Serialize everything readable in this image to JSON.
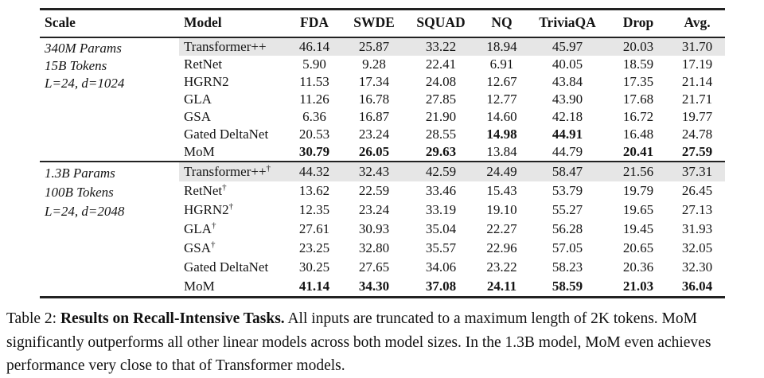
{
  "table": {
    "columns": [
      "Scale",
      "Model",
      "FDA",
      "SWDE",
      "SQUAD",
      "NQ",
      "TriviaQA",
      "Drop",
      "Avg."
    ],
    "dagger_symbol": "†",
    "groups": [
      {
        "scale_lines": [
          "340M Params",
          "15B Tokens",
          "L=24, d=1024"
        ],
        "rows": [
          {
            "model": "Transformer++",
            "dagger": false,
            "highlight": true,
            "values": [
              "46.14",
              "25.87",
              "33.22",
              "18.94",
              "45.97",
              "20.03",
              "31.70"
            ],
            "bold": [
              false,
              false,
              false,
              false,
              false,
              false,
              false
            ]
          },
          {
            "model": "RetNet",
            "dagger": false,
            "highlight": false,
            "values": [
              "5.90",
              "9.28",
              "22.41",
              "6.91",
              "40.05",
              "18.59",
              "17.19"
            ],
            "bold": [
              false,
              false,
              false,
              false,
              false,
              false,
              false
            ]
          },
          {
            "model": "HGRN2",
            "dagger": false,
            "highlight": false,
            "values": [
              "11.53",
              "17.34",
              "24.08",
              "12.67",
              "43.84",
              "17.35",
              "21.14"
            ],
            "bold": [
              false,
              false,
              false,
              false,
              false,
              false,
              false
            ]
          },
          {
            "model": "GLA",
            "dagger": false,
            "highlight": false,
            "values": [
              "11.26",
              "16.78",
              "27.85",
              "12.77",
              "43.90",
              "17.68",
              "21.71"
            ],
            "bold": [
              false,
              false,
              false,
              false,
              false,
              false,
              false
            ]
          },
          {
            "model": "GSA",
            "dagger": false,
            "highlight": false,
            "values": [
              "6.36",
              "16.87",
              "21.90",
              "14.60",
              "42.18",
              "16.72",
              "19.77"
            ],
            "bold": [
              false,
              false,
              false,
              false,
              false,
              false,
              false
            ]
          },
          {
            "model": "Gated DeltaNet",
            "dagger": false,
            "highlight": false,
            "values": [
              "20.53",
              "23.24",
              "28.55",
              "14.98",
              "44.91",
              "16.48",
              "24.78"
            ],
            "bold": [
              false,
              false,
              false,
              true,
              true,
              false,
              false
            ]
          },
          {
            "model": "MoM",
            "dagger": false,
            "highlight": false,
            "values": [
              "30.79",
              "26.05",
              "29.63",
              "13.84",
              "44.79",
              "20.41",
              "27.59"
            ],
            "bold": [
              true,
              true,
              true,
              false,
              false,
              true,
              true
            ]
          }
        ]
      },
      {
        "scale_lines": [
          "1.3B Params",
          "100B Tokens",
          "L=24, d=2048"
        ],
        "rows": [
          {
            "model": "Transformer++",
            "dagger": true,
            "highlight": true,
            "values": [
              "44.32",
              "32.43",
              "42.59",
              "24.49",
              "58.47",
              "21.56",
              "37.31"
            ],
            "bold": [
              false,
              false,
              false,
              false,
              false,
              false,
              false
            ]
          },
          {
            "model": "RetNet",
            "dagger": true,
            "highlight": false,
            "values": [
              "13.62",
              "22.59",
              "33.46",
              "15.43",
              "53.79",
              "19.79",
              "26.45"
            ],
            "bold": [
              false,
              false,
              false,
              false,
              false,
              false,
              false
            ]
          },
          {
            "model": "HGRN2",
            "dagger": true,
            "highlight": false,
            "values": [
              "12.35",
              "23.24",
              "33.19",
              "19.10",
              "55.27",
              "19.65",
              "27.13"
            ],
            "bold": [
              false,
              false,
              false,
              false,
              false,
              false,
              false
            ]
          },
          {
            "model": "GLA",
            "dagger": true,
            "highlight": false,
            "values": [
              "27.61",
              "30.93",
              "35.04",
              "22.27",
              "56.28",
              "19.45",
              "31.93"
            ],
            "bold": [
              false,
              false,
              false,
              false,
              false,
              false,
              false
            ]
          },
          {
            "model": "GSA",
            "dagger": true,
            "highlight": false,
            "values": [
              "23.25",
              "32.80",
              "35.57",
              "22.96",
              "57.05",
              "20.65",
              "32.05"
            ],
            "bold": [
              false,
              false,
              false,
              false,
              false,
              false,
              false
            ]
          },
          {
            "model": "Gated DeltaNet",
            "dagger": false,
            "highlight": false,
            "values": [
              "30.25",
              "27.65",
              "34.06",
              "23.22",
              "58.23",
              "20.36",
              "32.30"
            ],
            "bold": [
              false,
              false,
              false,
              false,
              false,
              false,
              false
            ]
          },
          {
            "model": "MoM",
            "dagger": false,
            "highlight": false,
            "values": [
              "41.14",
              "34.30",
              "37.08",
              "24.11",
              "58.59",
              "21.03",
              "36.04"
            ],
            "bold": [
              true,
              true,
              true,
              true,
              true,
              true,
              true
            ]
          }
        ]
      }
    ]
  },
  "caption": {
    "line1_prefix": "Table 2: ",
    "line1_bold": "Results on Recall-Intensive Tasks.",
    "line1_rest": " All inputs are truncated to a maximum length of 2K tokens. MoM",
    "line2": "significantly outperforms all other linear models across both model sizes. In the 1.3B model, MoM even achieves",
    "line3": "performance very close to that of Transformer models."
  },
  "colors": {
    "highlight": "#e6e6e6",
    "rule": "#222222",
    "text": "#141414"
  }
}
